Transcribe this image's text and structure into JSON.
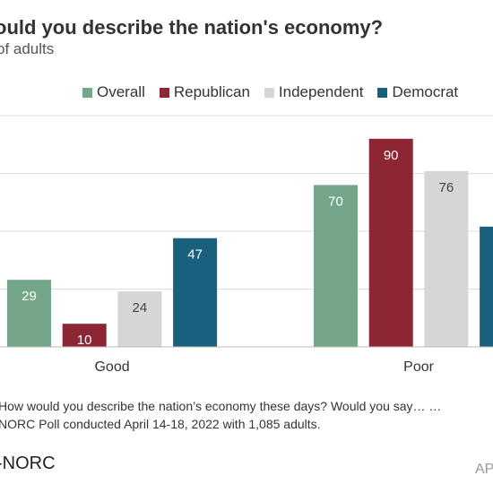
{
  "title": "ould you describe the nation's economy?",
  "subtitle": "of adults",
  "footer": {
    "question": "How would you describe the nation’s economy these days? Would you say… …",
    "source": "NORC Poll conducted April 14-18, 2022 with 1,085 adults.",
    "logo": "NORC",
    "credit": "AP"
  },
  "chart_data": {
    "type": "bar",
    "categories": [
      "Good",
      "Poor"
    ],
    "series": [
      {
        "name": "Overall",
        "color": "#74a789",
        "values": [
          29,
          70
        ]
      },
      {
        "name": "Republican",
        "color": "#8c2633",
        "values": [
          10,
          90
        ]
      },
      {
        "name": "Independent",
        "color": "#d6d6d6",
        "values": [
          24,
          76
        ]
      },
      {
        "name": "Democrat",
        "color": "#19607e",
        "values": [
          47,
          52
        ]
      }
    ],
    "ylim": [
      0,
      100
    ],
    "grid": true,
    "legend": "top"
  }
}
